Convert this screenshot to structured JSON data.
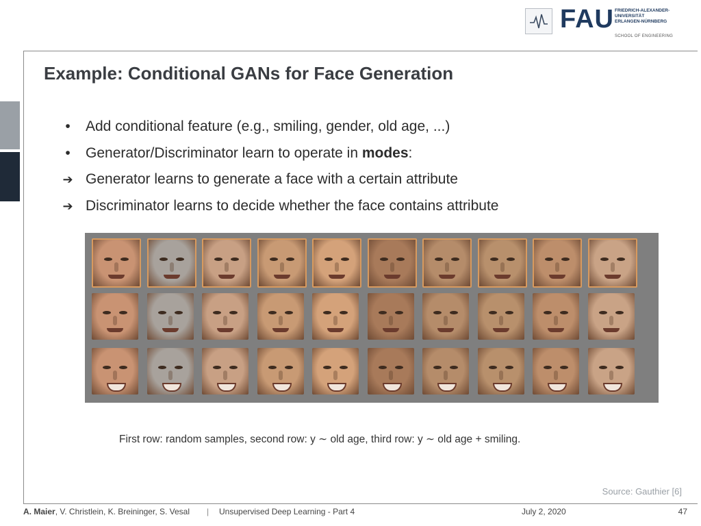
{
  "header": {
    "logo_letters": "FAU",
    "university_lines": [
      "FRIEDRICH-ALEXANDER-",
      "UNIVERSITÄT",
      "ERLANGEN-NÜRNBERG"
    ],
    "school": "SCHOOL OF ENGINEERING"
  },
  "slide": {
    "title": "Example: Conditional GANs for Face Generation",
    "bullets": [
      {
        "type": "dot",
        "text": "Add conditional feature (e.g., smiling, gender, old age, ...)"
      },
      {
        "type": "dot",
        "text_before": "Generator/Discriminator learn to operate in ",
        "bold": "modes",
        "text_after": ":"
      },
      {
        "type": "arrow",
        "text": "Generator learns to generate a face with a certain attribute"
      },
      {
        "type": "arrow",
        "text": "Discriminator learns to decide whether the face contains attribute"
      }
    ],
    "caption": "First row: random samples, second row: y ∼ old age, third row: y ∼ old age + smiling.",
    "source": "Source: Gauthier [6]",
    "bullet_glyph": "•",
    "arrow_glyph": "➔"
  },
  "footer": {
    "lead_author": "A. Maier",
    "other_authors": ", V. Christlein, K. Breininger, S. Vesal",
    "separator": "|",
    "course": "Unsupervised Deep Learning - Part 4",
    "date": "July 2, 2020",
    "page": "47"
  },
  "face_grid": {
    "rows": 3,
    "cols": 10,
    "row_meaning": [
      "random samples",
      "y ∼ old age",
      "y ∼ old age + smiling"
    ],
    "colors": {
      "background": "#7f7f7f",
      "row0_border": "#d89a5e",
      "skin_tones": [
        "#c99373",
        "#a8a29c",
        "#c8a084",
        "#c89a74",
        "#d4a27a",
        "#a87a5a",
        "#b58c6a",
        "#b8906c",
        "#bd8e6b",
        "#c9a386"
      ]
    }
  }
}
